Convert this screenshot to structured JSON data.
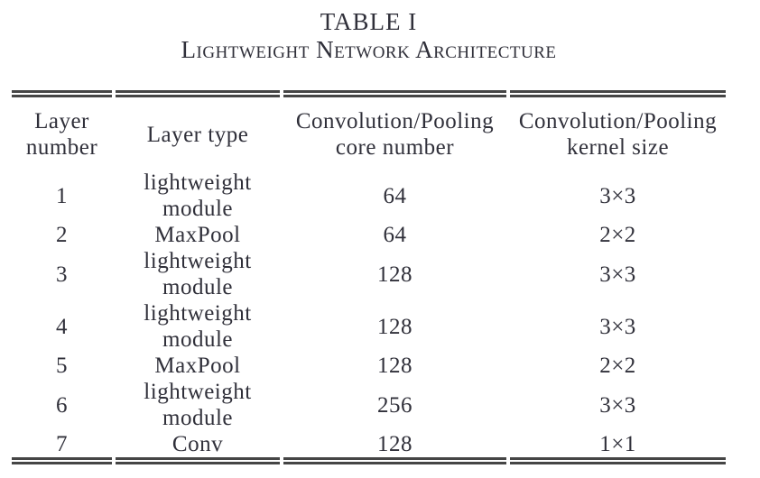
{
  "page": {
    "background_color": "#ffffff",
    "text_color": "#30303a",
    "rule_color": "#454545"
  },
  "caption": {
    "line1": "TABLE I",
    "line2": "Lightweight Network Architecture"
  },
  "table": {
    "columns": [
      {
        "id": "layer_number",
        "label": "Layer\nnumber"
      },
      {
        "id": "layer_type",
        "label": "Layer type"
      },
      {
        "id": "core_number",
        "label": "Convolution/Pooling\ncore number"
      },
      {
        "id": "kernel_size",
        "label": "Convolution/Pooling\nkernel size"
      }
    ],
    "rows": [
      {
        "layer_number": "1",
        "layer_type": "lightweight\nmodule",
        "core_number": "64",
        "kernel_size": "3×3"
      },
      {
        "layer_number": "2",
        "layer_type": "MaxPool",
        "core_number": "64",
        "kernel_size": "2×2"
      },
      {
        "layer_number": "3",
        "layer_type": "lightweight\nmodule",
        "core_number": "128",
        "kernel_size": "3×3"
      },
      {
        "layer_number": "4",
        "layer_type": "lightweight\nmodule",
        "core_number": "128",
        "kernel_size": "3×3"
      },
      {
        "layer_number": "5",
        "layer_type": "MaxPool",
        "core_number": "128",
        "kernel_size": "2×2"
      },
      {
        "layer_number": "6",
        "layer_type": "lightweight\nmodule",
        "core_number": "256",
        "kernel_size": "3×3"
      },
      {
        "layer_number": "7",
        "layer_type": "Conv",
        "core_number": "128",
        "kernel_size": "1×1"
      }
    ]
  }
}
